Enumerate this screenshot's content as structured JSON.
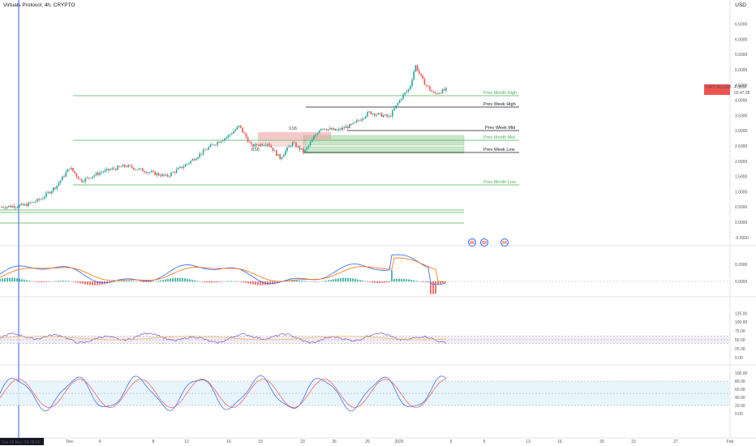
{
  "header": {
    "title": "Virtuals Protocol, 4h, CRYPTO",
    "currency": "USD"
  },
  "price_badge": {
    "symbol": "VIRTUALUSD",
    "price": "4.3836",
    "countdown": "02:47:39"
  },
  "crosshair": {
    "date_label": "Tue 26 Nov '24  08:00"
  },
  "price_axis": [
    "6.5000",
    "6.0000",
    "5.5000",
    "5.0000",
    "4.5000",
    "4.0000",
    "3.5000",
    "3.0000",
    "2.5000",
    "2.0000",
    "1.5000",
    "1.0000",
    "0.5000",
    "0.0000",
    "-0.5000"
  ],
  "macd_axis": [
    "0.2000",
    "0.0000"
  ],
  "rsi_axis": [
    "125.00",
    "100.00",
    "75.00",
    "50.00",
    "25.00",
    "0.00"
  ],
  "stoch_axis": [
    "100.00",
    "80.00",
    "60.00",
    "40.00",
    "20.00",
    "0.00"
  ],
  "time_axis": [
    "Dec",
    "4",
    "8",
    "12",
    "16",
    "19",
    "23",
    "26",
    "29",
    "2025",
    "6",
    "9",
    "13",
    "16",
    "20",
    "23",
    "27",
    "Feb"
  ],
  "levels": [
    {
      "label": "Prev Month High",
      "color": "#4caf50"
    },
    {
      "label": "Prev Week High",
      "color": "#131722"
    },
    {
      "label": "Prev Week Mid",
      "color": "#131722"
    },
    {
      "label": "Prev Month Mid",
      "color": "#4caf50"
    },
    {
      "label": "Prev Week Low",
      "color": "#131722"
    },
    {
      "label": "Prev Month Low",
      "color": "#4caf50"
    }
  ],
  "zone_labels": [
    "SSB",
    "BSB"
  ],
  "colors": {
    "up": "#26a69a",
    "down": "#ef5350",
    "green_level": "#4caf50",
    "crosshair": "#2962ff",
    "macd_line": "#2962ff",
    "signal_line": "#ff6d00",
    "rsi_band": "#7e57c2",
    "stoch_band": "#2196f3"
  }
}
